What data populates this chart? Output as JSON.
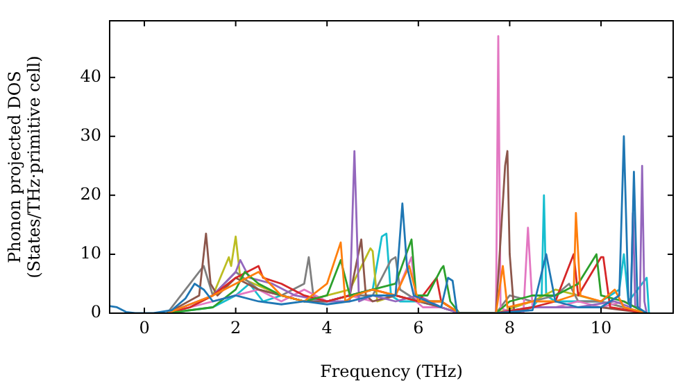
{
  "chart_data": {
    "type": "line",
    "xlabel": "Frequency (THz)",
    "ylabel": "Phonon projected DOS\n(States/THz·primitive cell)",
    "xlim": [
      -0.76,
      11.58
    ],
    "ylim": [
      0,
      49.6
    ],
    "xticks": [
      0,
      2,
      4,
      6,
      8,
      10
    ],
    "yticks": [
      0,
      10,
      20,
      30,
      40
    ],
    "grid": false,
    "legend": false,
    "marker": "none",
    "line_style": "solid",
    "series": [
      {
        "color": "#1f77b4",
        "x": [
          -0.75,
          -0.6,
          -0.4,
          -0.2,
          0.2,
          0.6,
          0.9,
          1.1,
          1.3,
          1.5,
          2.0,
          2.5,
          3.0,
          3.5,
          4.0,
          4.5,
          5.0,
          5.5,
          5.65,
          5.75,
          5.9,
          6.2,
          6.5,
          6.65,
          6.75,
          6.85,
          7.7,
          8.5,
          8.8,
          8.9,
          9.0,
          9.5,
          10.0,
          10.4,
          10.5,
          10.6,
          10.65,
          10.72,
          10.8,
          11.0
        ],
        "values": [
          1.2,
          1.0,
          0.2,
          0,
          0,
          0.5,
          2.5,
          5,
          4,
          2,
          3,
          2,
          1.5,
          2,
          1.5,
          2,
          3,
          3,
          18.6,
          8,
          3,
          2,
          1,
          6,
          5.5,
          0,
          0,
          0.5,
          10,
          6,
          2,
          1,
          1,
          3,
          30,
          2,
          1,
          24,
          1,
          0
        ]
      },
      {
        "color": "#ff7f0e",
        "x": [
          0.5,
          1.0,
          1.5,
          2.0,
          2.5,
          3.0,
          3.5,
          4.0,
          4.3,
          4.4,
          4.6,
          5.0,
          5.5,
          5.8,
          6.0,
          6.5,
          6.9,
          7.7,
          7.85,
          7.95,
          8.5,
          9.0,
          9.4,
          9.45,
          9.55,
          10.0,
          10.3,
          10.5,
          11.0
        ],
        "values": [
          0,
          1.5,
          3,
          5,
          7,
          3,
          2,
          5,
          12,
          2,
          3,
          4,
          3,
          8,
          2,
          2,
          0,
          0,
          8,
          1,
          2,
          2,
          3,
          17,
          3,
          2,
          4,
          1,
          0
        ]
      },
      {
        "color": "#2ca02c",
        "x": [
          0.5,
          1.0,
          1.5,
          2.0,
          2.2,
          2.5,
          3.0,
          3.5,
          4.0,
          4.3,
          4.5,
          5.0,
          5.5,
          5.85,
          5.95,
          6.2,
          6.5,
          6.55,
          6.7,
          6.9,
          7.7,
          8.0,
          8.5,
          9.0,
          9.5,
          9.9,
          10.0,
          10.5,
          11.0
        ],
        "values": [
          0,
          0.5,
          1,
          4,
          7,
          5,
          3,
          2,
          3,
          9,
          3,
          4,
          5,
          12.5,
          3,
          3,
          7.5,
          8,
          2,
          0,
          0,
          2,
          3,
          3,
          5,
          10,
          3,
          2,
          0
        ]
      },
      {
        "color": "#d62728",
        "x": [
          0.5,
          1.0,
          1.5,
          2.0,
          2.5,
          2.6,
          3.0,
          3.5,
          4.0,
          4.5,
          5.0,
          5.5,
          6.0,
          6.4,
          6.5,
          6.9,
          7.7,
          8.5,
          9.0,
          9.4,
          9.5,
          10.0,
          10.05,
          10.2,
          11.0
        ],
        "values": [
          0,
          1,
          3,
          6,
          8,
          6,
          5,
          3,
          2,
          3,
          4,
          3,
          2,
          6,
          2,
          0,
          0,
          1,
          2,
          10,
          3,
          9.5,
          9.5,
          1,
          0
        ]
      },
      {
        "color": "#9467bd",
        "x": [
          0.5,
          1.5,
          2.0,
          2.1,
          2.3,
          2.8,
          3.3,
          4.0,
          4.5,
          4.6,
          4.7,
          5.0,
          5.5,
          6.0,
          6.5,
          6.9,
          7.7,
          8.5,
          9.5,
          10.3,
          10.65,
          10.7,
          10.75,
          10.85,
          10.9,
          10.95,
          11.0
        ],
        "values": [
          0,
          3,
          7,
          9,
          6,
          5,
          3,
          2,
          2,
          27.5,
          2,
          3,
          2,
          3,
          1,
          0,
          0,
          1,
          1,
          2,
          1,
          17,
          1,
          1,
          25,
          2,
          0
        ]
      },
      {
        "color": "#8c564b",
        "x": [
          0.5,
          1.2,
          1.35,
          1.45,
          1.6,
          2.0,
          2.5,
          3.0,
          3.5,
          4.0,
          4.5,
          4.75,
          4.85,
          5.0,
          5.5,
          6.0,
          6.5,
          6.9,
          7.7,
          7.9,
          7.95,
          8.0,
          8.1,
          8.5,
          9.0,
          10.0,
          11.0
        ],
        "values": [
          0,
          3,
          13.5,
          5,
          3,
          6,
          4,
          3,
          2,
          2,
          3,
          12.5,
          3,
          2,
          3,
          2,
          1,
          0,
          0,
          25,
          27.5,
          10,
          0,
          1,
          1,
          1,
          0
        ]
      },
      {
        "color": "#e377c2",
        "x": [
          0.5,
          1.5,
          2.0,
          2.5,
          3.0,
          3.5,
          4.0,
          4.5,
          5.0,
          5.5,
          5.85,
          5.95,
          6.1,
          6.5,
          6.9,
          7.7,
          7.75,
          7.8,
          7.9,
          8.3,
          8.4,
          8.5,
          9.0,
          9.5,
          10.0,
          10.5,
          11.0
        ],
        "values": [
          0,
          2,
          3,
          4,
          2,
          4,
          2,
          3,
          2,
          3,
          9.5,
          2,
          1,
          1,
          0,
          0,
          47,
          1,
          0.5,
          0,
          14.5,
          1,
          1,
          2,
          1,
          2,
          0
        ]
      },
      {
        "color": "#7f7f7f",
        "x": [
          0.5,
          1.3,
          1.5,
          2.0,
          2.5,
          3.0,
          3.5,
          3.6,
          3.7,
          4.0,
          4.5,
          5.0,
          5.4,
          5.5,
          5.6,
          6.0,
          6.5,
          6.9,
          7.7,
          8.0,
          8.5,
          9.0,
          9.3,
          9.5,
          10.0,
          11.0
        ],
        "values": [
          0,
          8,
          3,
          7,
          4,
          3,
          5,
          9.5,
          3,
          2,
          3,
          3,
          9,
          9.5,
          4,
          2,
          2,
          0,
          0,
          3,
          2,
          3,
          5,
          2,
          2,
          0
        ]
      },
      {
        "color": "#bcbd22",
        "x": [
          0.5,
          1.0,
          1.5,
          1.85,
          1.9,
          2.0,
          2.1,
          2.4,
          3.0,
          3.5,
          4.0,
          4.5,
          4.95,
          5.0,
          5.1,
          5.5,
          6.0,
          6.5,
          6.9,
          7.7,
          8.5,
          9.0,
          9.5,
          10.0,
          11.0
        ],
        "values": [
          0,
          1,
          3,
          9.5,
          8,
          13,
          6,
          5,
          3,
          2,
          3,
          4,
          11,
          10.5,
          2,
          3,
          2,
          2,
          0,
          0,
          2,
          4,
          3,
          2,
          0
        ]
      },
      {
        "color": "#17becf",
        "x": [
          0.5,
          1.5,
          2.0,
          2.3,
          2.6,
          3.0,
          3.5,
          4.0,
          4.5,
          5.0,
          5.2,
          5.3,
          5.4,
          5.6,
          6.0,
          6.5,
          6.9,
          7.7,
          8.5,
          8.7,
          8.75,
          8.8,
          9.0,
          9.5,
          10.0,
          10.4,
          10.5,
          10.6,
          11.0,
          11.05
        ],
        "values": [
          0,
          1,
          3,
          5,
          2,
          3,
          2,
          2,
          3,
          4,
          13,
          13.5,
          3,
          2,
          2,
          1,
          0,
          0,
          1,
          3,
          20,
          3,
          2,
          2,
          2,
          4,
          10,
          2,
          6,
          0
        ]
      }
    ]
  }
}
